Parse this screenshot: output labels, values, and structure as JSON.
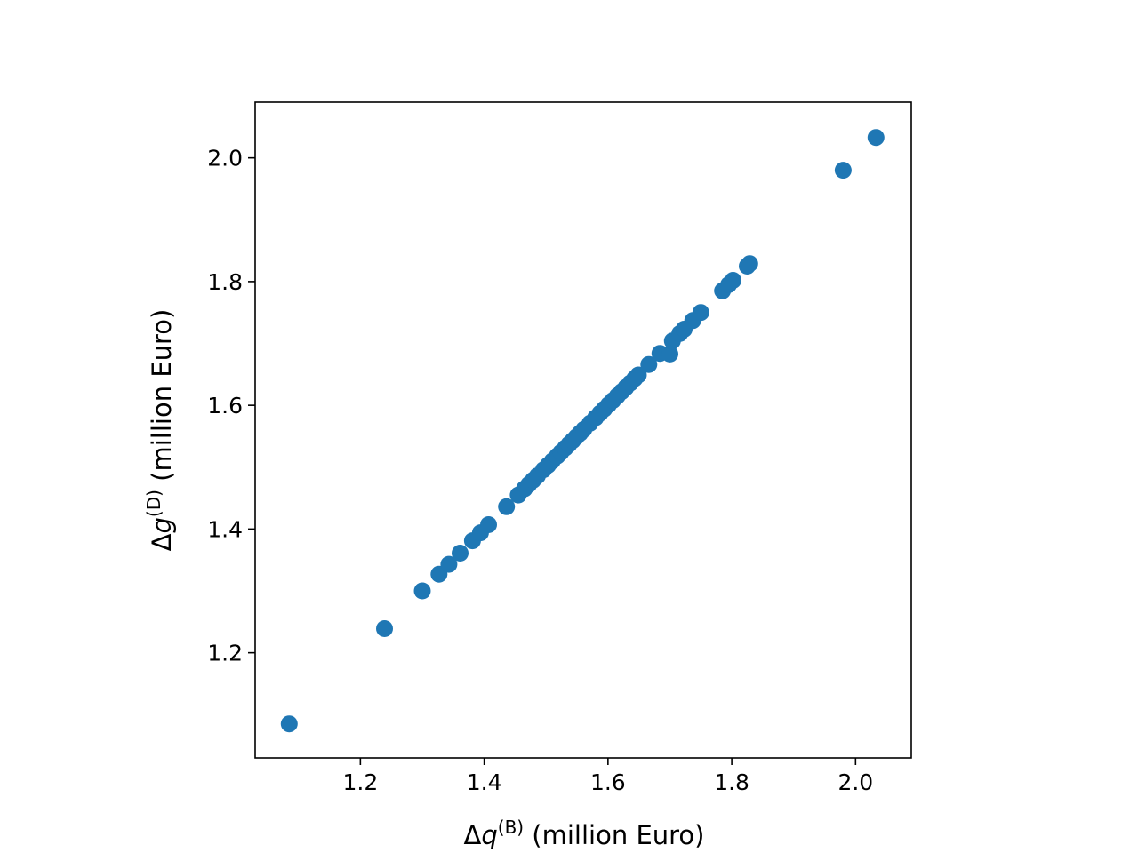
{
  "chart_data": {
    "type": "scatter",
    "title": "",
    "xlabel": {
      "prefix": "Δ",
      "var": "q",
      "sup": "(B)",
      "suffix": " (million Euro)"
    },
    "ylabel": {
      "prefix": "Δ",
      "var": "g",
      "sup": "(D)",
      "suffix": " (million Euro)"
    },
    "xlim": [
      1.03,
      2.09
    ],
    "ylim": [
      1.03,
      2.09
    ],
    "xticks": [
      1.2,
      1.4,
      1.6,
      1.8,
      2.0
    ],
    "xtick_labels": [
      "1.2",
      "1.4",
      "1.6",
      "1.8",
      "2.0"
    ],
    "yticks": [
      1.2,
      1.4,
      1.6,
      1.8,
      2.0
    ],
    "ytick_labels": [
      "1.2",
      "1.4",
      "1.6",
      "1.8",
      "2.0"
    ],
    "grid": false,
    "legend": "none",
    "marker_color": "#1f77b4",
    "series": [
      {
        "points": [
          [
            1.085,
            1.085
          ],
          [
            1.239,
            1.239
          ],
          [
            1.3,
            1.3
          ],
          [
            1.327,
            1.327
          ],
          [
            1.343,
            1.343
          ],
          [
            1.361,
            1.361
          ],
          [
            1.381,
            1.381
          ],
          [
            1.394,
            1.394
          ],
          [
            1.407,
            1.407
          ],
          [
            1.436,
            1.436
          ],
          [
            1.455,
            1.455
          ],
          [
            1.465,
            1.465
          ],
          [
            1.472,
            1.472
          ],
          [
            1.479,
            1.479
          ],
          [
            1.486,
            1.486
          ],
          [
            1.496,
            1.496
          ],
          [
            1.503,
            1.503
          ],
          [
            1.51,
            1.51
          ],
          [
            1.518,
            1.518
          ],
          [
            1.524,
            1.524
          ],
          [
            1.531,
            1.531
          ],
          [
            1.537,
            1.537
          ],
          [
            1.543,
            1.543
          ],
          [
            1.549,
            1.549
          ],
          [
            1.555,
            1.555
          ],
          [
            1.561,
            1.561
          ],
          [
            1.571,
            1.571
          ],
          [
            1.58,
            1.58
          ],
          [
            1.587,
            1.587
          ],
          [
            1.594,
            1.594
          ],
          [
            1.601,
            1.601
          ],
          [
            1.608,
            1.608
          ],
          [
            1.615,
            1.615
          ],
          [
            1.622,
            1.622
          ],
          [
            1.629,
            1.629
          ],
          [
            1.636,
            1.636
          ],
          [
            1.643,
            1.643
          ],
          [
            1.649,
            1.649
          ],
          [
            1.666,
            1.666
          ],
          [
            1.684,
            1.684
          ],
          [
            1.7,
            1.683
          ],
          [
            1.704,
            1.704
          ],
          [
            1.716,
            1.716
          ],
          [
            1.723,
            1.723
          ],
          [
            1.737,
            1.737
          ],
          [
            1.75,
            1.75
          ],
          [
            1.785,
            1.785
          ],
          [
            1.795,
            1.795
          ],
          [
            1.802,
            1.802
          ],
          [
            1.825,
            1.825
          ],
          [
            1.829,
            1.829
          ],
          [
            1.98,
            1.98
          ],
          [
            2.033,
            2.033
          ]
        ]
      }
    ]
  }
}
